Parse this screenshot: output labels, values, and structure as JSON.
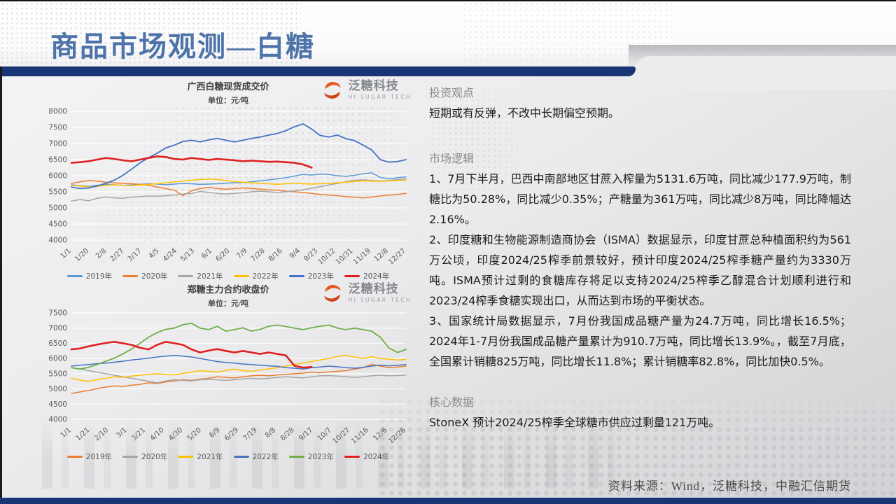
{
  "page": {
    "title": "商品市场观测—白糖",
    "source_note": "资料来源：Wind，泛糖科技，中融汇信期货"
  },
  "logo": {
    "name": "泛糖科技",
    "subtitle": "HI SUGAR TECH"
  },
  "right_panel": {
    "sections": [
      {
        "heading": "投资观点",
        "paragraphs": [
          "短期或有反弹，不改中长期偏空预期。"
        ]
      },
      {
        "heading": "市场逻辑",
        "paragraphs": [
          "1、7月下半月，巴西中南部地区甘蔗入榨量为5131.6万吨，同比减少177.9万吨，制糖比为50.28%，同比减少0.35%；产糖量为361万吨，同比减少8万吨，同比降幅达2.16%。",
          "2、印度糖和生物能源制造商协会（ISMA）数据显示，印度甘蔗总种植面积约为561万公顷，印度2024/25榨季前景较好，预计印度2024/25榨季糖产量约为3330万吨。ISMA预计过剩的食糖库存将足以支持2024/25榨季乙醇混合计划顺利进行和2023/24榨季食糖实现出口，从而达到市场的平衡状态。",
          "3、国家统计局数据显示，7月份我国成品糖产量为24.7万吨，同比增长16.5%；2024年1-7月份我国成品糖产量累计为910.7万吨，同比增长13.9%。，截至7月底，全国累计销糖825万吨，同比增长11.8%；累计销糖率82.8%，同比加快0.5%。"
        ]
      },
      {
        "heading": "核心数据",
        "paragraphs": [
          "StoneX 预计2024/25榨季全球糖市供应过剩量121万吨。"
        ]
      }
    ]
  },
  "chart_data": [
    {
      "type": "line",
      "title": "广西白糖现货成交价",
      "subtitle": "单位：元/吨",
      "ylim": [
        4000,
        8000
      ],
      "ytick_step": 500,
      "grid": true,
      "legend_position": "bottom",
      "x_labels": [
        "1/1",
        "1/20",
        "2/8",
        "2/27",
        "3/17",
        "4/5",
        "4/24",
        "5/13",
        "6/1",
        "6/20",
        "7/9",
        "7/28",
        "8/16",
        "9/4",
        "9/23",
        "10/12",
        "10/31",
        "11/19",
        "12/8",
        "12/27"
      ],
      "series": [
        {
          "name": "2019年",
          "color": "#5B9BD5",
          "width": 1.5,
          "values": [
            5720,
            5690,
            5670,
            5700,
            5730,
            5720,
            5700,
            5710,
            5730,
            5750,
            5740,
            5720,
            5740,
            5760,
            5750,
            5730,
            5740,
            5750,
            5770,
            5780,
            5790,
            5810,
            5840,
            5870,
            5900,
            5940,
            5990,
            6040,
            6020,
            6050,
            6040,
            6000,
            5980,
            6010,
            6060,
            6090,
            5950,
            5900,
            5940,
            5960
          ]
        },
        {
          "name": "2020年",
          "color": "#ED7D31",
          "width": 1.5,
          "values": [
            5760,
            5810,
            5850,
            5830,
            5800,
            5780,
            5760,
            5750,
            5730,
            5700,
            5650,
            5600,
            5550,
            5380,
            5530,
            5600,
            5640,
            5600,
            5580,
            5600,
            5620,
            5600,
            5580,
            5560,
            5550,
            5520,
            5500,
            5480,
            5450,
            5420,
            5400,
            5380,
            5350,
            5330,
            5310,
            5340,
            5370,
            5400,
            5420,
            5450
          ]
        },
        {
          "name": "2021年",
          "color": "#A5A5A5",
          "width": 1.5,
          "values": [
            5210,
            5260,
            5220,
            5300,
            5340,
            5310,
            5300,
            5330,
            5350,
            5370,
            5360,
            5380,
            5400,
            5430,
            5450,
            5510,
            5480,
            5450,
            5430,
            5450,
            5470,
            5500,
            5520,
            5500,
            5480,
            5500,
            5530,
            5560,
            5610,
            5660,
            5710,
            5760,
            5810,
            5860,
            5870,
            5850,
            5830,
            5850,
            5880,
            5900
          ]
        },
        {
          "name": "2022年",
          "color": "#FFC000",
          "width": 1.5,
          "values": [
            5700,
            5680,
            5650,
            5670,
            5700,
            5720,
            5700,
            5690,
            5710,
            5730,
            5750,
            5780,
            5810,
            5830,
            5860,
            5880,
            5900,
            5880,
            5850,
            5820,
            5800,
            5780,
            5760,
            5750,
            5730,
            5750,
            5770,
            5750,
            5740,
            5750,
            5760,
            5780,
            5800,
            5820,
            5840,
            5830,
            5820,
            5840,
            5850,
            5860
          ]
        },
        {
          "name": "2023年",
          "color": "#4472C4",
          "width": 1.8,
          "values": [
            5650,
            5600,
            5620,
            5680,
            5760,
            5860,
            6010,
            6200,
            6400,
            6560,
            6700,
            6860,
            6950,
            7060,
            7100,
            7050,
            7110,
            7160,
            7100,
            7050,
            7100,
            7160,
            7200,
            7260,
            7310,
            7400,
            7520,
            7610,
            7450,
            7250,
            7200,
            7260,
            7150,
            7090,
            6950,
            6800,
            6500,
            6420,
            6440,
            6500
          ]
        },
        {
          "name": "2024年",
          "color": "#E02020",
          "width": 2.6,
          "values": [
            6400,
            6420,
            6450,
            6500,
            6550,
            6520,
            6480,
            6450,
            6500,
            6550,
            6600,
            6580,
            6520,
            6500,
            6550,
            6520,
            6490,
            6520,
            6500,
            6480,
            6450,
            6470,
            6450,
            6430,
            6440,
            6420,
            6400,
            6350,
            6250
          ]
        }
      ]
    },
    {
      "type": "line",
      "title": "郑糖主力合约收盘价",
      "subtitle": "单位：元/吨",
      "ylim": [
        4000,
        7500
      ],
      "ytick_step": 500,
      "grid": true,
      "legend_position": "bottom",
      "x_labels": [
        "1/1",
        "1/21",
        "2/10",
        "3/1",
        "3/21",
        "4/10",
        "4/30",
        "5/20",
        "6/9",
        "6/29",
        "7/19",
        "8/8",
        "8/28",
        "9/17",
        "10/7",
        "10/27",
        "11/16",
        "12/6",
        "12/26"
      ],
      "series": [
        {
          "name": "2019年",
          "color": "#ED7D31",
          "width": 1.5,
          "values": [
            4850,
            4900,
            4950,
            5010,
            5060,
            5100,
            5080,
            5120,
            5150,
            5200,
            5180,
            5230,
            5260,
            5300,
            5280,
            5320,
            5350,
            5400,
            5380,
            5360,
            5400,
            5430,
            5450,
            5430,
            5460,
            5480,
            5500,
            5520,
            5550,
            5530,
            5560,
            5580,
            5600,
            5650,
            5700,
            5810,
            5750,
            5700,
            5720,
            5750
          ]
        },
        {
          "name": "2020年",
          "color": "#A5A5A5",
          "width": 1.5,
          "values": [
            5700,
            5660,
            5600,
            5550,
            5500,
            5450,
            5400,
            5350,
            5300,
            5250,
            5200,
            5260,
            5300,
            5280,
            5260,
            5300,
            5320,
            5300,
            5280,
            5300,
            5330,
            5350,
            5330,
            5350,
            5380,
            5400,
            5380,
            5360,
            5400,
            5430,
            5440,
            5420,
            5400,
            5380,
            5400,
            5430,
            5450,
            5430,
            5440,
            5460
          ]
        },
        {
          "name": "2021年",
          "color": "#FFC000",
          "width": 1.5,
          "values": [
            5350,
            5290,
            5250,
            5310,
            5350,
            5400,
            5380,
            5420,
            5450,
            5480,
            5500,
            5480,
            5460,
            5510,
            5550,
            5600,
            5580,
            5550,
            5610,
            5650,
            5600,
            5580,
            5620,
            5660,
            5700,
            5750,
            5800,
            5850,
            5900,
            5950,
            6000,
            6060,
            6110,
            6050,
            6000,
            6060,
            6000,
            5980,
            5950,
            5970
          ]
        },
        {
          "name": "2022年",
          "color": "#4472C4",
          "width": 1.5,
          "values": [
            5750,
            5780,
            5800,
            5830,
            5850,
            5880,
            5910,
            5950,
            5980,
            6010,
            6050,
            6080,
            6100,
            6080,
            6050,
            6000,
            5950,
            5900,
            5870,
            5850,
            5820,
            5800,
            5780,
            5760,
            5740,
            5700,
            5680,
            5650,
            5700,
            5720,
            5750,
            5730,
            5700,
            5680,
            5710,
            5750,
            5780,
            5760,
            5780,
            5800
          ]
        },
        {
          "name": "2023年",
          "color": "#70AD47",
          "width": 1.8,
          "values": [
            5700,
            5650,
            5710,
            5800,
            5910,
            6010,
            6150,
            6310,
            6500,
            6700,
            6850,
            6960,
            7000,
            7110,
            7160,
            7000,
            6950,
            7060,
            6900,
            6950,
            7010,
            6900,
            6960,
            7060,
            7100,
            7050,
            7000,
            6950,
            7010,
            7060,
            7100,
            7000,
            6950,
            7000,
            6950,
            6900,
            6700,
            6350,
            6200,
            6300
          ]
        },
        {
          "name": "2024年",
          "color": "#E02020",
          "width": 2.6,
          "values": [
            6300,
            6330,
            6400,
            6460,
            6510,
            6550,
            6500,
            6450,
            6350,
            6300,
            6450,
            6550,
            6500,
            6450,
            6300,
            6200,
            6260,
            6310,
            6250,
            6200,
            6250,
            6200,
            6150,
            6200,
            6150,
            6100,
            5760,
            5700,
            5720
          ]
        }
      ]
    }
  ]
}
